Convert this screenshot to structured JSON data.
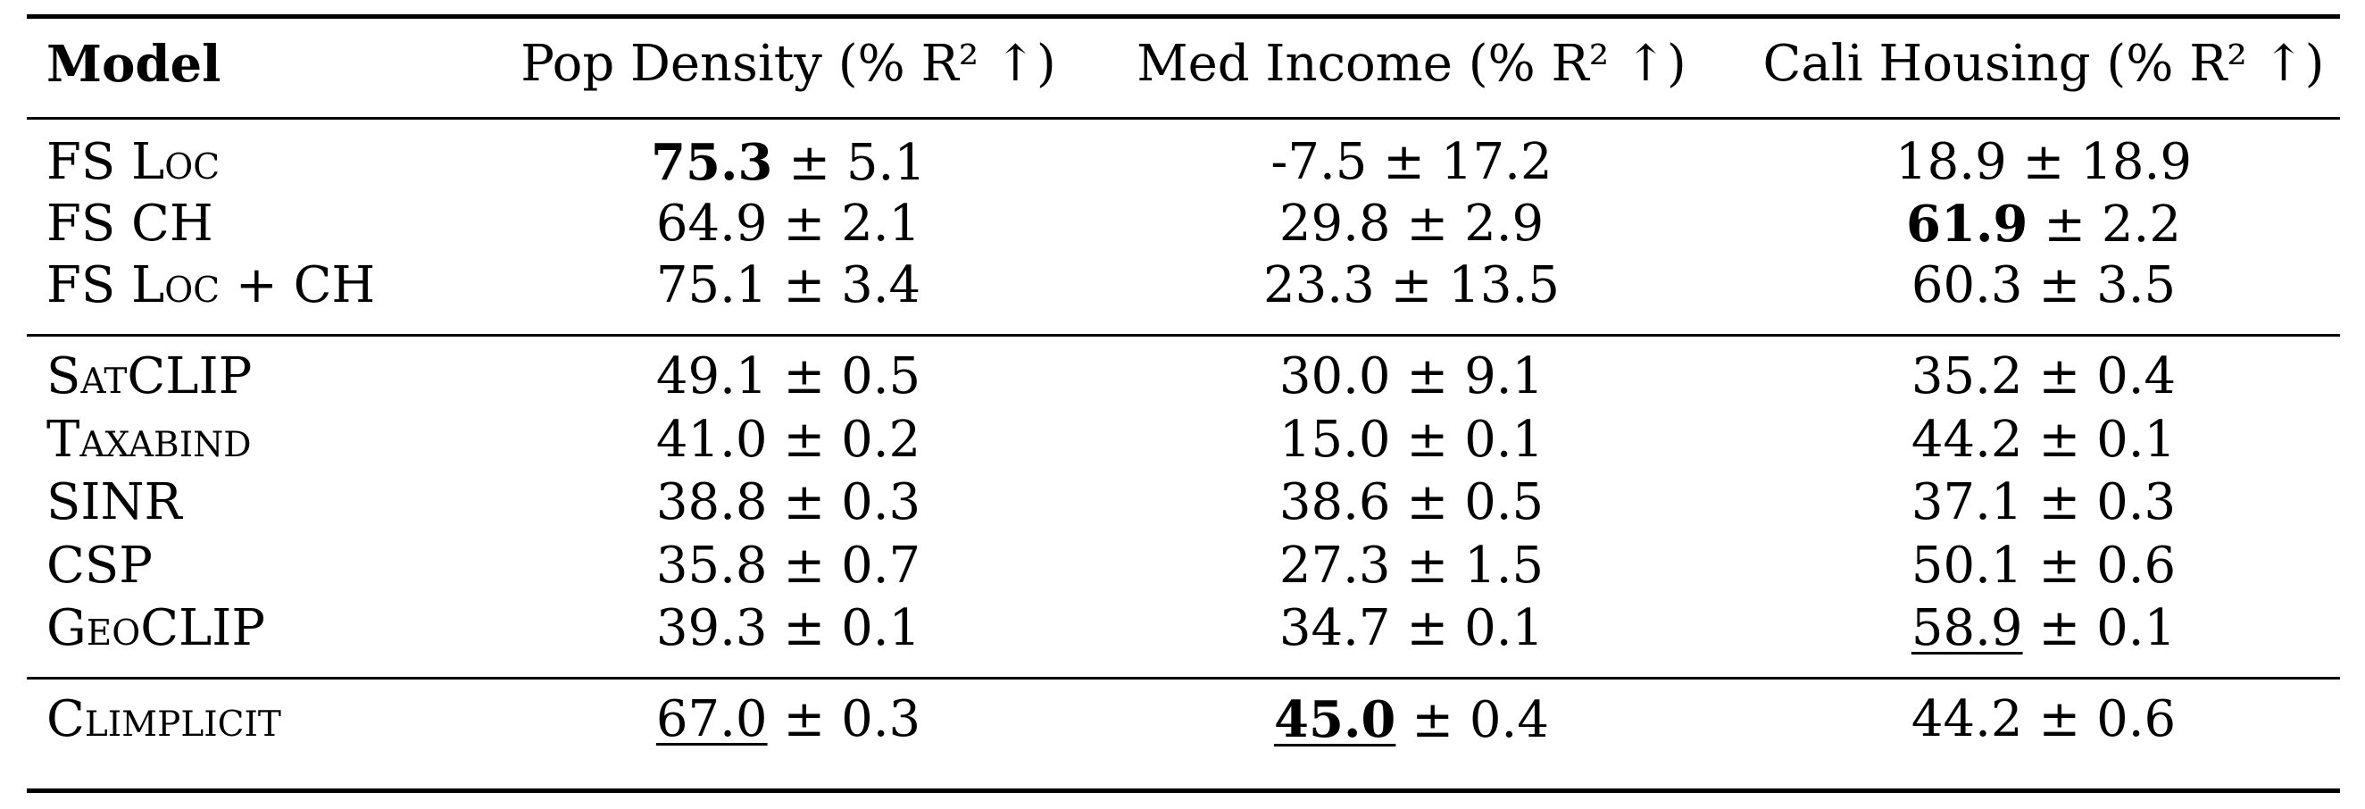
{
  "table": {
    "headers": {
      "model": "Model",
      "pop_density": "Pop Density (% R² ↑)",
      "med_income": "Med Income (% R² ↑)",
      "cali_housing": "Cali Housing (% R² ↑)"
    },
    "groups": [
      {
        "rows": [
          {
            "model": "FS Loc",
            "pop_density": {
              "mean": "75.3",
              "std": "5.1",
              "bold": true,
              "underline": false
            },
            "med_income": {
              "mean": "-7.5",
              "std": "17.2",
              "bold": false,
              "underline": false
            },
            "cali_housing": {
              "mean": "18.9",
              "std": "18.9",
              "bold": false,
              "underline": false
            }
          },
          {
            "model": "FS CH",
            "pop_density": {
              "mean": "64.9",
              "std": "2.1",
              "bold": false,
              "underline": false
            },
            "med_income": {
              "mean": "29.8",
              "std": "2.9",
              "bold": false,
              "underline": false
            },
            "cali_housing": {
              "mean": "61.9",
              "std": "2.2",
              "bold": true,
              "underline": false
            }
          },
          {
            "model": "FS Loc + CH",
            "pop_density": {
              "mean": "75.1",
              "std": "3.4",
              "bold": false,
              "underline": false
            },
            "med_income": {
              "mean": "23.3",
              "std": "13.5",
              "bold": false,
              "underline": false
            },
            "cali_housing": {
              "mean": "60.3",
              "std": "3.5",
              "bold": false,
              "underline": false
            }
          }
        ]
      },
      {
        "rows": [
          {
            "model": "SatCLIP",
            "pop_density": {
              "mean": "49.1",
              "std": "0.5",
              "bold": false,
              "underline": false
            },
            "med_income": {
              "mean": "30.0",
              "std": "9.1",
              "bold": false,
              "underline": false
            },
            "cali_housing": {
              "mean": "35.2",
              "std": "0.4",
              "bold": false,
              "underline": false
            }
          },
          {
            "model": "Taxabind",
            "pop_density": {
              "mean": "41.0",
              "std": "0.2",
              "bold": false,
              "underline": false
            },
            "med_income": {
              "mean": "15.0",
              "std": "0.1",
              "bold": false,
              "underline": false
            },
            "cali_housing": {
              "mean": "44.2",
              "std": "0.1",
              "bold": false,
              "underline": false
            }
          },
          {
            "model": "SINR",
            "pop_density": {
              "mean": "38.8",
              "std": "0.3",
              "bold": false,
              "underline": false
            },
            "med_income": {
              "mean": "38.6",
              "std": "0.5",
              "bold": false,
              "underline": false
            },
            "cali_housing": {
              "mean": "37.1",
              "std": "0.3",
              "bold": false,
              "underline": false
            }
          },
          {
            "model": "CSP",
            "pop_density": {
              "mean": "35.8",
              "std": "0.7",
              "bold": false,
              "underline": false
            },
            "med_income": {
              "mean": "27.3",
              "std": "1.5",
              "bold": false,
              "underline": false
            },
            "cali_housing": {
              "mean": "50.1",
              "std": "0.6",
              "bold": false,
              "underline": false
            }
          },
          {
            "model": "GeoCLIP",
            "pop_density": {
              "mean": "39.3",
              "std": "0.1",
              "bold": false,
              "underline": false
            },
            "med_income": {
              "mean": "34.7",
              "std": "0.1",
              "bold": false,
              "underline": false
            },
            "cali_housing": {
              "mean": "58.9",
              "std": "0.1",
              "bold": false,
              "underline": true
            }
          }
        ]
      },
      {
        "rows": [
          {
            "model": "Climplicit",
            "pop_density": {
              "mean": "67.0",
              "std": "0.3",
              "bold": false,
              "underline": true
            },
            "med_income": {
              "mean": "45.0",
              "std": "0.4",
              "bold": true,
              "underline": true
            },
            "cali_housing": {
              "mean": "44.2",
              "std": "0.6",
              "bold": false,
              "underline": false
            }
          }
        ]
      }
    ]
  }
}
